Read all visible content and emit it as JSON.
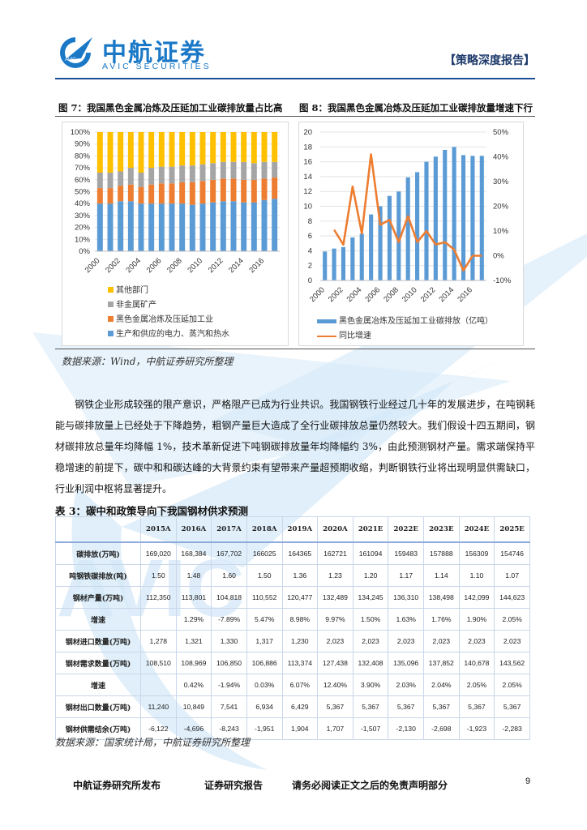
{
  "header": {
    "logo_cn": "中航证券",
    "logo_en": "AVIC SECURITIES",
    "logo_badge": "AVIC",
    "report_tag": "【策略深度报告】",
    "brand_color": "#1a78c6"
  },
  "figure7": {
    "title": "图 7：我国黑色金属冶炼及压延加工业碳排放量占比高",
    "legend": [
      "其他部门",
      "非金属矿产",
      "黑色金属冶炼及压延加工业",
      "生产和供应的电力、蒸汽和热水"
    ]
  },
  "figure8": {
    "title": "图 8：我国黑色金属冶炼及压延加工业碳排放量增速下行",
    "legend": [
      "黑色金属冶炼及压延加工业碳排放（亿吨）",
      "同比增速"
    ]
  },
  "chart_data": [
    {
      "type": "bar",
      "stacked": true,
      "title": "我国黑色金属冶炼及压延加工业碳排放量占比高",
      "categories": [
        "2000",
        "2001",
        "2002",
        "2003",
        "2004",
        "2005",
        "2006",
        "2007",
        "2008",
        "2009",
        "2010",
        "2011",
        "2012",
        "2013",
        "2014",
        "2015",
        "2016",
        "2017"
      ],
      "xtick_labels": [
        "2000",
        "2002",
        "2004",
        "2006",
        "2008",
        "2010",
        "2012",
        "2014",
        "2016"
      ],
      "ylabel": "",
      "xlabel": "",
      "ylim": [
        0,
        100
      ],
      "yticks": [
        "0%",
        "10%",
        "20%",
        "30%",
        "40%",
        "50%",
        "60%",
        "70%",
        "80%",
        "90%",
        "100%"
      ],
      "legend_position": "bottom",
      "grid": true,
      "series": [
        {
          "name": "生产和供应的电力、蒸汽和热水",
          "color": "#5b9bd5",
          "values": [
            40,
            40,
            42,
            42,
            40,
            40,
            40,
            40,
            40,
            39,
            40,
            41,
            42,
            42,
            41,
            41,
            43,
            44
          ]
        },
        {
          "name": "黑色金属冶炼及压延加工业",
          "color": "#ed7d31",
          "values": [
            13,
            13,
            13,
            14,
            14,
            16,
            17,
            17,
            18,
            19,
            19,
            19,
            19,
            19,
            19,
            19,
            18,
            18
          ]
        },
        {
          "name": "非金属矿产",
          "color": "#a5a5a5",
          "values": [
            13,
            13,
            12,
            14,
            12,
            14,
            14,
            14,
            14,
            14,
            14,
            14,
            14,
            14,
            15,
            14,
            14,
            13
          ]
        },
        {
          "name": "其他部门",
          "color": "#ffc000",
          "values": [
            34,
            34,
            33,
            30,
            34,
            30,
            29,
            29,
            28,
            28,
            27,
            26,
            25,
            25,
            25,
            26,
            25,
            25
          ]
        }
      ]
    },
    {
      "type": "bar",
      "title": "我国黑色金属冶炼及压延加工业碳排放量增速下行",
      "categories": [
        "2000",
        "2001",
        "2002",
        "2003",
        "2004",
        "2005",
        "2006",
        "2007",
        "2008",
        "2009",
        "2010",
        "2011",
        "2012",
        "2013",
        "2014",
        "2015",
        "2016",
        "2017"
      ],
      "xtick_labels": [
        "2000",
        "2002",
        "2004",
        "2006",
        "2008",
        "2010",
        "2012",
        "2014",
        "2016"
      ],
      "ylim": [
        0,
        20
      ],
      "yticks": [
        "0",
        "2",
        "4",
        "6",
        "8",
        "10",
        "12",
        "14",
        "16",
        "18",
        "20"
      ],
      "y2lim": [
        -10,
        50
      ],
      "y2ticks": [
        "-10%",
        "0%",
        "10%",
        "20%",
        "30%",
        "40%",
        "50%"
      ],
      "legend_position": "bottom",
      "grid": true,
      "series": [
        {
          "name": "黑色金属冶炼及压延加工业碳排放（亿吨）",
          "type": "bar",
          "axis": "left",
          "color": "#5b9bd5",
          "values": [
            3.9,
            4.3,
            4.5,
            5.8,
            6.3,
            8.9,
            10.0,
            11.4,
            12.0,
            13.9,
            14.6,
            16.0,
            16.7,
            17.6,
            18.0,
            16.9,
            16.8,
            16.8
          ]
        },
        {
          "name": "同比增速",
          "type": "line",
          "axis": "right",
          "color": "#ed7d31",
          "values": [
            null,
            10.5,
            4.5,
            28,
            9,
            41,
            12.5,
            14.5,
            5.5,
            16,
            5.5,
            10,
            4.5,
            5.5,
            2.5,
            -6,
            0,
            0
          ]
        }
      ]
    },
    {
      "type": "table",
      "title": "表 3：碳中和政策导向下我国钢材供求预测",
      "columns": [
        "",
        "2015A",
        "2016A",
        "2017A",
        "2018A",
        "2019A",
        "2020A",
        "2021E",
        "2022E",
        "2023E",
        "2024E",
        "2025E"
      ],
      "rows": [
        [
          "碳排放(万吨)",
          "169,020",
          "168,384",
          "167,702",
          "166025",
          "164365",
          "162721",
          "161094",
          "159483",
          "157888",
          "156309",
          "154746"
        ],
        [
          "吨钢铁碳排放(吨)",
          "1.50",
          "1.48",
          "1.60",
          "1.50",
          "1.36",
          "1.23",
          "1.20",
          "1.17",
          "1.14",
          "1.10",
          "1.07"
        ],
        [
          "钢材产量(万吨)",
          "112,350",
          "113,801",
          "104,818",
          "110,552",
          "120,477",
          "132,489",
          "134,245",
          "136,310",
          "138,498",
          "142,099",
          "144,623"
        ],
        [
          "增速",
          "",
          "1.29%",
          "-7.89%",
          "5.47%",
          "8.98%",
          "9.97%",
          "1.50%",
          "1.63%",
          "1.76%",
          "1.90%",
          "2.05%"
        ],
        [
          "钢材进口数量(万吨)",
          "1,278",
          "1,321",
          "1,330",
          "1,317",
          "1,230",
          "2,023",
          "2,023",
          "2,023",
          "2,023",
          "2,023",
          "2,023"
        ],
        [
          "钢材需求数量(万吨)",
          "108,510",
          "108,969",
          "106,850",
          "106,886",
          "113,374",
          "127,438",
          "132,408",
          "135,096",
          "137,852",
          "140,678",
          "143,562"
        ],
        [
          "增速",
          "",
          "0.42%",
          "-1.94%",
          "0.03%",
          "6.07%",
          "12.40%",
          "3.90%",
          "2.03%",
          "2.04%",
          "2.05%",
          "2.05%"
        ],
        [
          "钢材出口数量(万吨)",
          "11,240",
          "10,849",
          "7,541",
          "6,934",
          "6,429",
          "5,367",
          "5,367",
          "5,367",
          "5,367",
          "5,367",
          "5,367"
        ],
        [
          "钢材供需结余(万吨)",
          "-6,122",
          "-4,696",
          "-8,243",
          "-1,951",
          "1,904",
          "1,707",
          "-1,507",
          "-2,130",
          "-2,698",
          "-1,923",
          "-2,283"
        ]
      ]
    }
  ],
  "source1": "数据来源：Wind，中航证券研究所整理",
  "paragraph": "钢铁企业形成较强的限产意识，严格限产已成为行业共识。我国钢铁行业经过几十年的发展进步，在吨钢耗能与碳排放量上已经处于下降趋势，粗钢产量巨大造成了全行业碳排放总量仍然较大。我们假设十四五期间，钢材碳排放总量年均降幅 1%，技术革新促进下吨钢碳排放量年均降幅约 3%，由此预测钢材产量。需求端保持平稳增速的前提下，碳中和和碳达峰的大背景约束有望带来产量超预期收缩，判断钢铁行业将出现明显供需缺口，行业利润中枢将显著提升。",
  "table_title": "表 3：碳中和政策导向下我国钢材供求预测",
  "source2": "数据来源：国家统计局，中航证券研究所整理",
  "footer": {
    "publisher": "中航证券研究所发布",
    "report_type": "证券研究报告",
    "disclaimer": "请务必阅读正文之后的免责声明部分",
    "page_number": "9"
  }
}
